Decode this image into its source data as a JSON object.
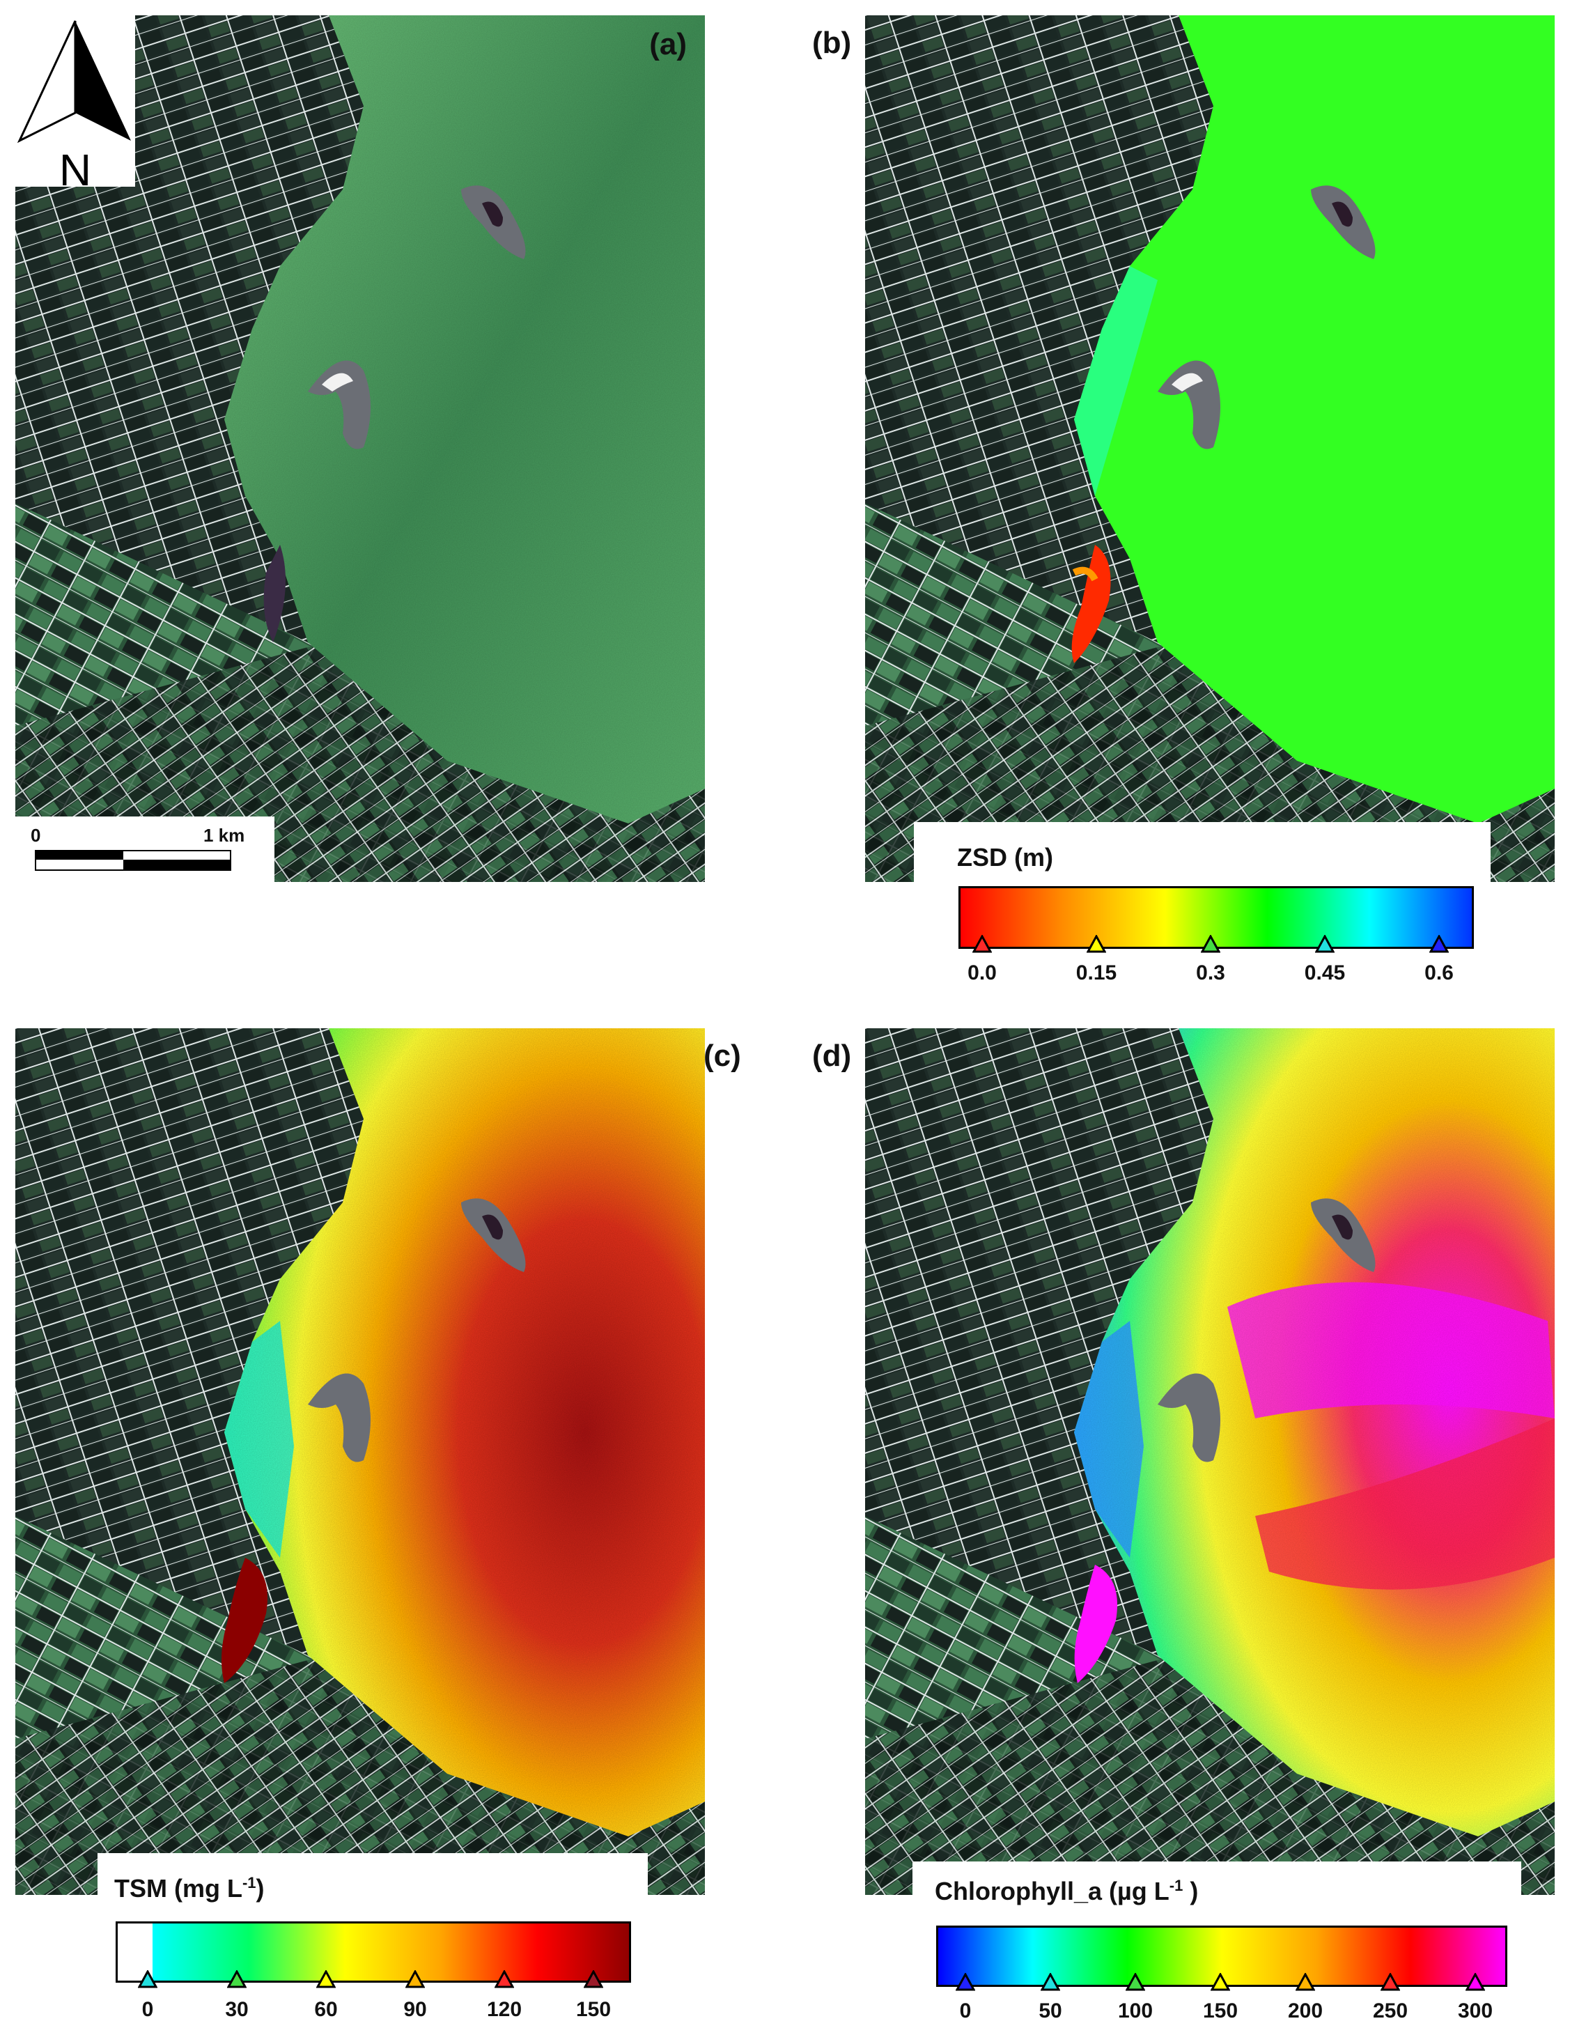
{
  "panels": {
    "a": {
      "label": "(a)"
    },
    "b": {
      "label": "(b)"
    },
    "c": {
      "label": "(c)"
    },
    "d": {
      "label": "(d)"
    }
  },
  "north_arrow": {
    "letter": "N"
  },
  "scale_bar": {
    "start_label": "0",
    "end_label": "1 km"
  },
  "colors": {
    "land_dark": "#1d2b27",
    "land_green": "#3f7a52",
    "field_line": "#dfe7e6",
    "true_water": "#4ea567",
    "zsd_water": "#33ff22",
    "island": "#6b6e75"
  },
  "legends": {
    "zsd": {
      "title": "ZSD (m)",
      "ticks": [
        "0.0",
        "0.15",
        "0.3",
        "0.45",
        "0.6"
      ],
      "tick_colors": [
        "#ff2a2a",
        "#ffff00",
        "#44dd44",
        "#22e0e0",
        "#2222ff"
      ],
      "ramp": [
        "#ff0000",
        "#ff8c00",
        "#ffff00",
        "#00ff00",
        "#00ffff",
        "#0033ff"
      ]
    },
    "tsm": {
      "title": "TSM (mg L",
      "title_sup": "-1",
      "title_end": ")",
      "ticks": [
        "0",
        "30",
        "60",
        "90",
        "120",
        "150"
      ],
      "tick_colors": [
        "#22e0e0",
        "#44dd44",
        "#ffff00",
        "#ffb400",
        "#ff2a2a",
        "#9b1b2a"
      ],
      "ramp": [
        "#00ffff",
        "#00ff66",
        "#ffff00",
        "#ffa500",
        "#ff0000",
        "#8b0000"
      ]
    },
    "chl": {
      "title": "Chlorophyll_a (µg L",
      "title_sup": "-1",
      "title_end": " )",
      "ticks": [
        "0",
        "50",
        "100",
        "150",
        "200",
        "250",
        "300"
      ],
      "tick_colors": [
        "#2222ff",
        "#22e0e0",
        "#44dd44",
        "#ffff00",
        "#ffb400",
        "#ff2a2a",
        "#ff00ff"
      ],
      "ramp": [
        "#0000ff",
        "#00ffff",
        "#00ff00",
        "#ffff00",
        "#ffa500",
        "#ff0000",
        "#ff00ff"
      ]
    }
  }
}
